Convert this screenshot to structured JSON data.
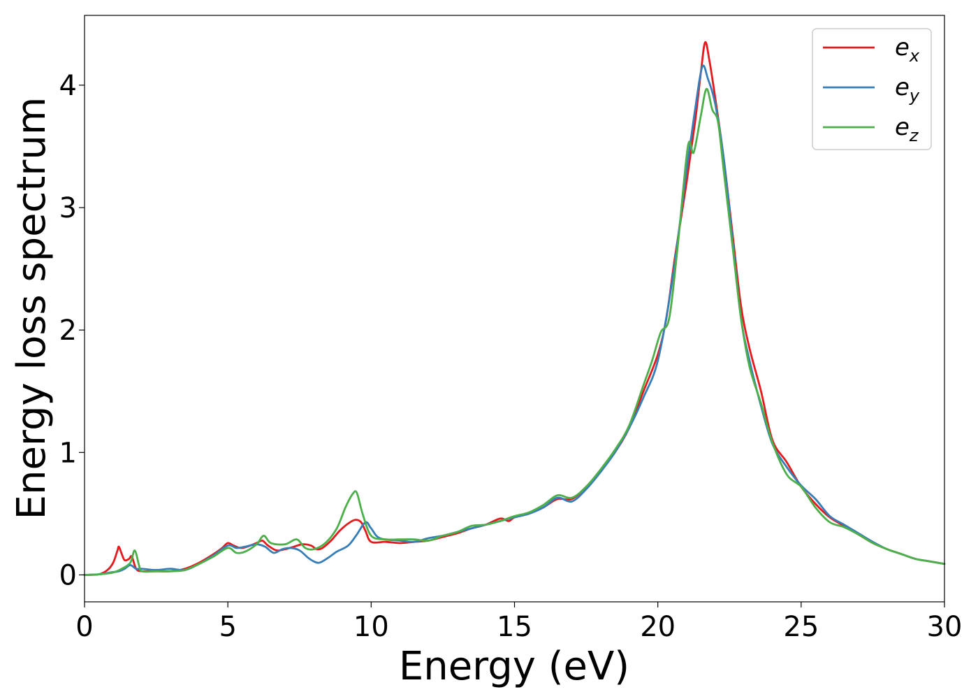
{
  "chart_data": {
    "type": "line",
    "title": "",
    "xlabel": "Energy (eV)",
    "ylabel": "Energy loss spectrum",
    "xlim": [
      0,
      30
    ],
    "ylim": [
      -0.22,
      4.57
    ],
    "xticks": [
      0,
      5,
      10,
      15,
      20,
      25,
      30
    ],
    "yticks": [
      0,
      1,
      2,
      3,
      4
    ],
    "grid": false,
    "legend_position": "top-right",
    "series": [
      {
        "name": "e",
        "subscript": "x",
        "color": "#e41a1c",
        "points": [
          [
            0,
            0.0
          ],
          [
            0.5,
            0.005
          ],
          [
            0.8,
            0.04
          ],
          [
            1.0,
            0.1
          ],
          [
            1.15,
            0.2
          ],
          [
            1.2,
            0.23
          ],
          [
            1.3,
            0.17
          ],
          [
            1.4,
            0.12
          ],
          [
            1.55,
            0.13
          ],
          [
            1.65,
            0.15
          ],
          [
            1.8,
            0.05
          ],
          [
            2.0,
            0.03
          ],
          [
            2.5,
            0.03
          ],
          [
            3.0,
            0.03
          ],
          [
            3.5,
            0.05
          ],
          [
            4.0,
            0.1
          ],
          [
            4.5,
            0.17
          ],
          [
            4.8,
            0.22
          ],
          [
            5.0,
            0.26
          ],
          [
            5.2,
            0.24
          ],
          [
            5.5,
            0.22
          ],
          [
            6.0,
            0.26
          ],
          [
            6.2,
            0.28
          ],
          [
            6.4,
            0.24
          ],
          [
            6.7,
            0.2
          ],
          [
            7.0,
            0.21
          ],
          [
            7.3,
            0.23
          ],
          [
            7.6,
            0.25
          ],
          [
            7.9,
            0.24
          ],
          [
            8.1,
            0.21
          ],
          [
            8.3,
            0.22
          ],
          [
            8.6,
            0.28
          ],
          [
            8.9,
            0.36
          ],
          [
            9.2,
            0.42
          ],
          [
            9.45,
            0.45
          ],
          [
            9.65,
            0.43
          ],
          [
            9.8,
            0.36
          ],
          [
            10.0,
            0.27
          ],
          [
            10.5,
            0.27
          ],
          [
            11.0,
            0.26
          ],
          [
            11.5,
            0.27
          ],
          [
            12.0,
            0.28
          ],
          [
            12.5,
            0.31
          ],
          [
            13.0,
            0.34
          ],
          [
            13.5,
            0.38
          ],
          [
            14.0,
            0.41
          ],
          [
            14.5,
            0.46
          ],
          [
            14.8,
            0.44
          ],
          [
            15.0,
            0.47
          ],
          [
            15.5,
            0.5
          ],
          [
            16.0,
            0.55
          ],
          [
            16.5,
            0.62
          ],
          [
            17.0,
            0.62
          ],
          [
            17.5,
            0.72
          ],
          [
            18.0,
            0.85
          ],
          [
            18.5,
            1.0
          ],
          [
            19.0,
            1.2
          ],
          [
            19.5,
            1.5
          ],
          [
            20.0,
            1.8
          ],
          [
            20.3,
            2.1
          ],
          [
            20.6,
            2.6
          ],
          [
            21.0,
            3.2
          ],
          [
            21.3,
            3.7
          ],
          [
            21.5,
            4.1
          ],
          [
            21.65,
            4.35
          ],
          [
            21.8,
            4.2
          ],
          [
            22.0,
            3.9
          ],
          [
            22.3,
            3.4
          ],
          [
            22.6,
            2.8
          ],
          [
            22.9,
            2.2
          ],
          [
            23.2,
            1.85
          ],
          [
            23.6,
            1.5
          ],
          [
            24.0,
            1.1
          ],
          [
            24.5,
            0.92
          ],
          [
            25.0,
            0.72
          ],
          [
            25.5,
            0.58
          ],
          [
            26.0,
            0.47
          ],
          [
            26.5,
            0.4
          ],
          [
            27.0,
            0.33
          ],
          [
            27.5,
            0.26
          ],
          [
            28.0,
            0.21
          ],
          [
            28.5,
            0.17
          ],
          [
            29.0,
            0.13
          ],
          [
            29.5,
            0.11
          ],
          [
            30.0,
            0.09
          ]
        ]
      },
      {
        "name": "e",
        "subscript": "y",
        "color": "#377eb8",
        "points": [
          [
            0,
            0.0
          ],
          [
            0.5,
            0.005
          ],
          [
            0.9,
            0.02
          ],
          [
            1.2,
            0.03
          ],
          [
            1.4,
            0.05
          ],
          [
            1.6,
            0.08
          ],
          [
            1.8,
            0.05
          ],
          [
            2.0,
            0.05
          ],
          [
            2.5,
            0.04
          ],
          [
            3.0,
            0.05
          ],
          [
            3.5,
            0.04
          ],
          [
            4.0,
            0.09
          ],
          [
            4.5,
            0.16
          ],
          [
            5.0,
            0.24
          ],
          [
            5.3,
            0.22
          ],
          [
            5.6,
            0.23
          ],
          [
            6.0,
            0.25
          ],
          [
            6.3,
            0.23
          ],
          [
            6.6,
            0.18
          ],
          [
            6.9,
            0.21
          ],
          [
            7.2,
            0.22
          ],
          [
            7.5,
            0.2
          ],
          [
            7.8,
            0.14
          ],
          [
            8.0,
            0.11
          ],
          [
            8.2,
            0.1
          ],
          [
            8.5,
            0.14
          ],
          [
            8.8,
            0.19
          ],
          [
            9.2,
            0.24
          ],
          [
            9.5,
            0.33
          ],
          [
            9.8,
            0.43
          ],
          [
            10.0,
            0.38
          ],
          [
            10.3,
            0.3
          ],
          [
            11.0,
            0.28
          ],
          [
            11.5,
            0.27
          ],
          [
            12.0,
            0.3
          ],
          [
            12.5,
            0.32
          ],
          [
            13.0,
            0.35
          ],
          [
            13.5,
            0.38
          ],
          [
            14.0,
            0.41
          ],
          [
            14.5,
            0.44
          ],
          [
            15.0,
            0.47
          ],
          [
            15.5,
            0.5
          ],
          [
            16.0,
            0.55
          ],
          [
            16.5,
            0.63
          ],
          [
            17.0,
            0.6
          ],
          [
            17.5,
            0.7
          ],
          [
            18.0,
            0.84
          ],
          [
            18.5,
            1.0
          ],
          [
            19.0,
            1.2
          ],
          [
            19.5,
            1.45
          ],
          [
            20.0,
            1.75
          ],
          [
            20.5,
            2.4
          ],
          [
            21.0,
            3.3
          ],
          [
            21.3,
            3.8
          ],
          [
            21.55,
            4.15
          ],
          [
            21.75,
            4.05
          ],
          [
            22.0,
            3.85
          ],
          [
            22.3,
            3.4
          ],
          [
            22.6,
            2.75
          ],
          [
            22.9,
            2.1
          ],
          [
            23.2,
            1.75
          ],
          [
            23.6,
            1.38
          ],
          [
            24.0,
            1.07
          ],
          [
            24.5,
            0.88
          ],
          [
            25.0,
            0.73
          ],
          [
            25.5,
            0.62
          ],
          [
            26.0,
            0.48
          ],
          [
            26.5,
            0.41
          ],
          [
            27.0,
            0.34
          ],
          [
            27.5,
            0.27
          ],
          [
            28.0,
            0.21
          ],
          [
            28.5,
            0.17
          ],
          [
            29.0,
            0.13
          ],
          [
            29.5,
            0.11
          ],
          [
            30.0,
            0.09
          ]
        ]
      },
      {
        "name": "e",
        "subscript": "z",
        "color": "#4daf4a",
        "points": [
          [
            0,
            0.0
          ],
          [
            0.5,
            0.005
          ],
          [
            1.0,
            0.02
          ],
          [
            1.3,
            0.05
          ],
          [
            1.6,
            0.1
          ],
          [
            1.75,
            0.2
          ],
          [
            1.9,
            0.08
          ],
          [
            2.0,
            0.03
          ],
          [
            2.5,
            0.03
          ],
          [
            3.0,
            0.03
          ],
          [
            3.5,
            0.04
          ],
          [
            4.0,
            0.09
          ],
          [
            4.5,
            0.15
          ],
          [
            5.0,
            0.22
          ],
          [
            5.3,
            0.18
          ],
          [
            5.6,
            0.19
          ],
          [
            6.0,
            0.25
          ],
          [
            6.25,
            0.32
          ],
          [
            6.5,
            0.26
          ],
          [
            7.0,
            0.25
          ],
          [
            7.4,
            0.29
          ],
          [
            7.7,
            0.22
          ],
          [
            8.0,
            0.21
          ],
          [
            8.4,
            0.26
          ],
          [
            8.8,
            0.38
          ],
          [
            9.1,
            0.55
          ],
          [
            9.35,
            0.66
          ],
          [
            9.5,
            0.67
          ],
          [
            9.7,
            0.5
          ],
          [
            10.0,
            0.32
          ],
          [
            10.5,
            0.29
          ],
          [
            11.0,
            0.29
          ],
          [
            11.5,
            0.29
          ],
          [
            12.0,
            0.28
          ],
          [
            12.5,
            0.32
          ],
          [
            13.0,
            0.35
          ],
          [
            13.5,
            0.4
          ],
          [
            14.0,
            0.41
          ],
          [
            14.5,
            0.44
          ],
          [
            15.0,
            0.48
          ],
          [
            15.5,
            0.51
          ],
          [
            16.0,
            0.57
          ],
          [
            16.5,
            0.65
          ],
          [
            17.0,
            0.63
          ],
          [
            17.5,
            0.72
          ],
          [
            18.0,
            0.86
          ],
          [
            18.5,
            1.02
          ],
          [
            19.0,
            1.22
          ],
          [
            19.5,
            1.55
          ],
          [
            19.8,
            1.75
          ],
          [
            20.1,
            1.98
          ],
          [
            20.4,
            2.1
          ],
          [
            20.7,
            2.7
          ],
          [
            21.05,
            3.5
          ],
          [
            21.25,
            3.45
          ],
          [
            21.5,
            3.75
          ],
          [
            21.7,
            3.97
          ],
          [
            21.9,
            3.8
          ],
          [
            22.1,
            3.7
          ],
          [
            22.3,
            3.3
          ],
          [
            22.6,
            2.7
          ],
          [
            22.9,
            2.1
          ],
          [
            23.2,
            1.7
          ],
          [
            23.6,
            1.4
          ],
          [
            24.0,
            1.08
          ],
          [
            24.5,
            0.82
          ],
          [
            25.0,
            0.72
          ],
          [
            25.5,
            0.55
          ],
          [
            26.0,
            0.43
          ],
          [
            26.5,
            0.39
          ],
          [
            27.0,
            0.33
          ],
          [
            27.5,
            0.26
          ],
          [
            28.0,
            0.21
          ],
          [
            28.5,
            0.17
          ],
          [
            29.0,
            0.13
          ],
          [
            29.5,
            0.11
          ],
          [
            30.0,
            0.09
          ]
        ]
      }
    ]
  }
}
